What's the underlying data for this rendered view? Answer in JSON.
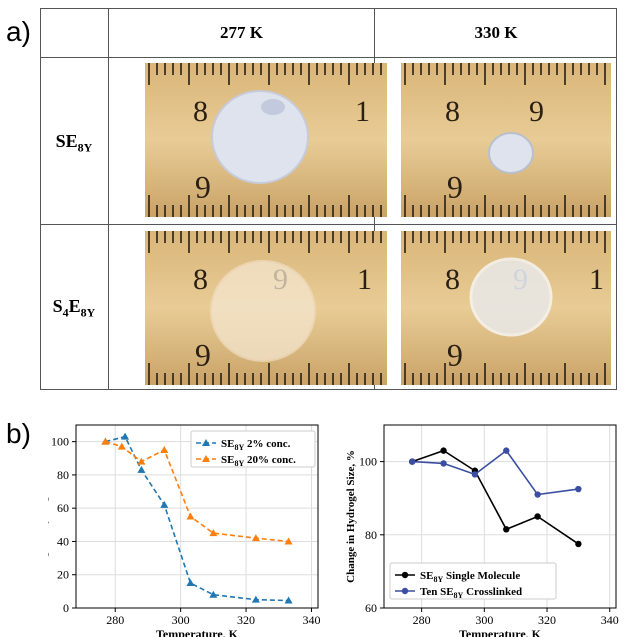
{
  "panel_a": {
    "label": "a)",
    "col_headers": [
      "277 K",
      "330 K"
    ],
    "rows": [
      {
        "base": "SE",
        "sub": "8Y"
      },
      {
        "pre": "S",
        "pre_sub": "4",
        "base": "E",
        "sub": "8Y"
      }
    ],
    "photos": [
      {
        "ruler_major": [
          "8",
          "1"
        ],
        "ruler_bottom": "6",
        "disc": "large white hydrogel disc"
      },
      {
        "ruler_major": [
          "8",
          "9"
        ],
        "ruler_bottom": "6",
        "disc": "small white hydrogel disc"
      },
      {
        "ruler_major": [
          "8",
          "9",
          "1"
        ],
        "ruler_bottom": "6",
        "disc": "large translucent hydrogel disc"
      },
      {
        "ruler_major": [
          "8",
          "9",
          "1"
        ],
        "ruler_bottom": "6",
        "disc": "medium translucent hydrogel disc"
      }
    ]
  },
  "panel_b": {
    "label": "b)"
  },
  "chart_data": [
    {
      "type": "line",
      "xlabel": "Temperature, K",
      "ylabel": "Change in Hydrogel Size, %",
      "xlim": [
        268,
        342
      ],
      "ylim": [
        0,
        110
      ],
      "xticks": [
        280,
        300,
        320,
        340
      ],
      "yticks": [
        0,
        20,
        40,
        60,
        80,
        100
      ],
      "grid": true,
      "legend_position": "top-right",
      "series": [
        {
          "name_base": "SE",
          "name_sub": "8Y",
          "name_tail": " 2% conc.",
          "color": "#1f77b4",
          "linestyle": "dashed",
          "marker": "triangle",
          "x": [
            277,
            283,
            288,
            295,
            303,
            310,
            323,
            333
          ],
          "y": [
            100,
            103,
            83,
            62,
            15,
            8,
            5,
            4.5
          ]
        },
        {
          "name_base": "SE",
          "name_sub": "8Y",
          "name_tail": " 20% conc.",
          "color": "#ff7f0e",
          "linestyle": "dashed",
          "marker": "triangle",
          "x": [
            277,
            282,
            288,
            295,
            303,
            310,
            323,
            333
          ],
          "y": [
            100,
            97,
            88,
            95,
            55,
            45,
            42,
            40
          ]
        }
      ]
    },
    {
      "type": "line",
      "xlabel": "Temperature, K",
      "ylabel": "Change in Hydrogel Size, %",
      "xlim": [
        268,
        342
      ],
      "ylim": [
        60,
        110
      ],
      "xticks": [
        280,
        300,
        320,
        340
      ],
      "yticks": [
        60,
        80,
        100
      ],
      "grid": true,
      "legend_position": "bottom-left",
      "series": [
        {
          "name_base": "SE",
          "name_sub": "8Y",
          "name_tail": " Single Molecule",
          "color": "#000000",
          "linestyle": "solid",
          "marker": "circle",
          "x": [
            277,
            287,
            297,
            307,
            317,
            330
          ],
          "y": [
            100,
            103,
            97.5,
            81.5,
            85,
            77.5
          ]
        },
        {
          "name_pre": "Ten ",
          "name_base": "SE",
          "name_sub": "8Y",
          "name_tail": " Crosslinked",
          "color": "#3b4ea1",
          "linestyle": "solid",
          "marker": "circle",
          "x": [
            277,
            287,
            297,
            307,
            317,
            330
          ],
          "y": [
            100,
            99.5,
            96.5,
            103,
            91,
            92.5
          ]
        }
      ]
    }
  ]
}
